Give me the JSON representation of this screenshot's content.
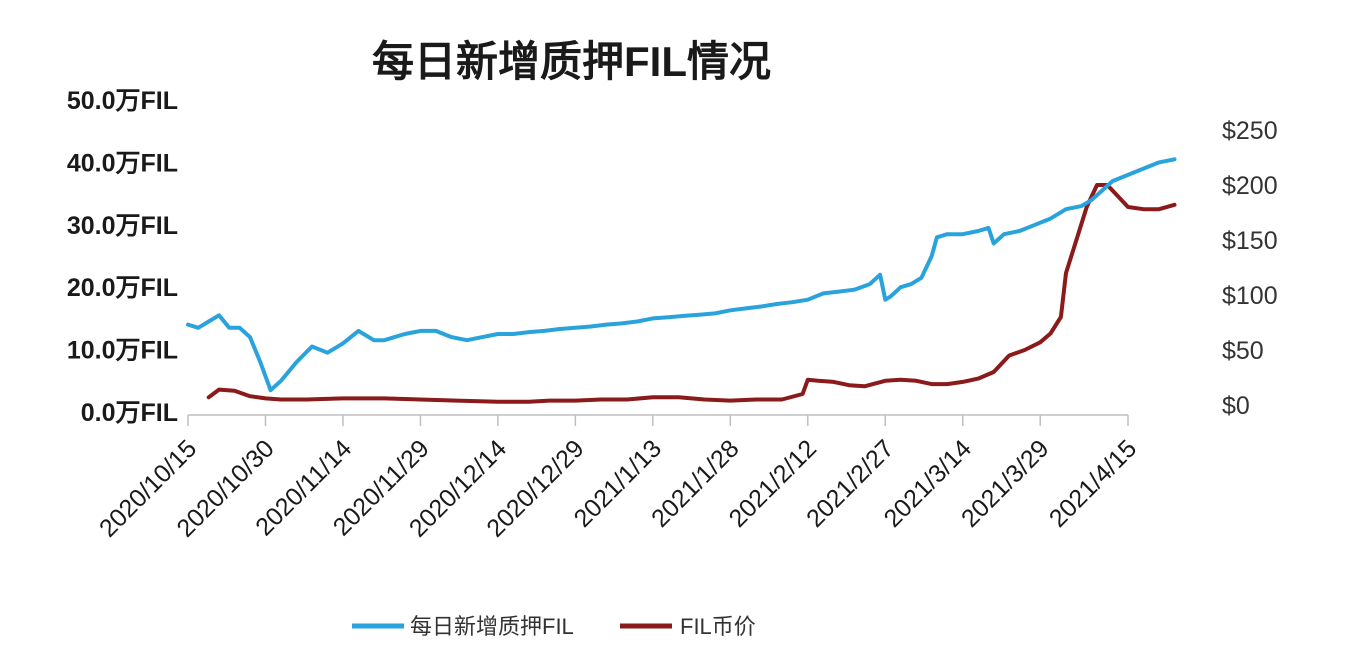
{
  "chart_data": {
    "type": "line",
    "title": "每日新增质押FIL情况",
    "x_ticks": [
      "2020/10/15",
      "2020/10/30",
      "2020/11/14",
      "2020/11/29",
      "2020/12/14",
      "2020/12/29",
      "2021/1/13",
      "2021/1/28",
      "2021/2/12",
      "2021/2/27",
      "2021/3/14",
      "2021/3/29",
      "2021/4/15"
    ],
    "y_left": {
      "ticks": [
        "0.0万FIL",
        "10.0万FIL",
        "20.0万FIL",
        "30.0万FIL",
        "40.0万FIL",
        "50.0万FIL"
      ],
      "ylim": [
        0,
        50
      ]
    },
    "y_right": {
      "ticks": [
        "$0",
        "$50",
        "$100",
        "$150",
        "$200",
        "$250"
      ],
      "ylim": [
        0,
        250
      ]
    },
    "legend": {
      "position": "bottom"
    },
    "colors": {
      "pledge": "#2aa3dc",
      "price": "#8b1a1a"
    },
    "series": [
      {
        "name": "每日新增质押FIL",
        "axis": "left",
        "x": [
          "2020-10-15",
          "2020-10-17",
          "2020-10-19",
          "2020-10-21",
          "2020-10-23",
          "2020-10-25",
          "2020-10-27",
          "2020-10-29",
          "2020-10-31",
          "2020-11-02",
          "2020-11-05",
          "2020-11-08",
          "2020-11-11",
          "2020-11-14",
          "2020-11-17",
          "2020-11-20",
          "2020-11-22",
          "2020-11-24",
          "2020-11-26",
          "2020-11-29",
          "2020-12-02",
          "2020-12-05",
          "2020-12-08",
          "2020-12-11",
          "2020-12-14",
          "2020-12-17",
          "2020-12-20",
          "2020-12-23",
          "2020-12-26",
          "2020-12-29",
          "2021-01-01",
          "2021-01-04",
          "2021-01-07",
          "2021-01-10",
          "2021-01-13",
          "2021-01-16",
          "2021-01-19",
          "2021-01-22",
          "2021-01-25",
          "2021-01-28",
          "2021-01-31",
          "2021-02-03",
          "2021-02-06",
          "2021-02-09",
          "2021-02-12",
          "2021-02-15",
          "2021-02-18",
          "2021-02-21",
          "2021-02-24",
          "2021-02-26",
          "2021-02-27",
          "2021-02-28",
          "2021-03-02",
          "2021-03-04",
          "2021-03-06",
          "2021-03-08",
          "2021-03-09",
          "2021-03-11",
          "2021-03-14",
          "2021-03-17",
          "2021-03-19",
          "2021-03-20",
          "2021-03-22",
          "2021-03-25",
          "2021-03-28",
          "2021-03-31",
          "2021-04-03",
          "2021-04-06",
          "2021-04-08",
          "2021-04-10",
          "2021-04-12",
          "2021-04-15",
          "2021-04-18",
          "2021-04-21",
          "2021-04-24"
        ],
        "values": [
          14.0,
          13.5,
          14.5,
          15.5,
          13.5,
          13.5,
          12.0,
          8.0,
          3.5,
          5.0,
          8.0,
          10.5,
          9.5,
          11.0,
          13.0,
          11.5,
          11.5,
          12.0,
          12.5,
          13.0,
          13.0,
          12.0,
          11.5,
          12.0,
          12.5,
          12.5,
          12.8,
          13.0,
          13.3,
          13.5,
          13.7,
          14.0,
          14.2,
          14.5,
          15.0,
          15.2,
          15.4,
          15.6,
          15.8,
          16.3,
          16.6,
          16.9,
          17.3,
          17.6,
          18.0,
          19.0,
          19.3,
          19.6,
          20.5,
          22.0,
          18.0,
          18.5,
          20.0,
          20.5,
          21.5,
          25.0,
          28.0,
          28.5,
          28.5,
          29.0,
          29.5,
          27.0,
          28.5,
          29.0,
          30.0,
          31.0,
          32.5,
          33.0,
          34.0,
          35.5,
          37.0,
          38.0,
          39.0,
          40.0,
          40.5
        ]
      },
      {
        "name": "FIL币价",
        "axis": "right",
        "x": [
          "2020-10-19",
          "2020-10-21",
          "2020-10-24",
          "2020-10-27",
          "2020-10-30",
          "2020-11-02",
          "2020-11-07",
          "2020-11-14",
          "2020-11-22",
          "2020-11-29",
          "2020-12-06",
          "2020-12-14",
          "2020-12-17",
          "2020-12-20",
          "2020-12-24",
          "2020-12-29",
          "2021-01-03",
          "2021-01-08",
          "2021-01-13",
          "2021-01-18",
          "2021-01-23",
          "2021-01-28",
          "2021-02-02",
          "2021-02-07",
          "2021-02-11",
          "2021-02-12",
          "2021-02-14",
          "2021-02-17",
          "2021-02-20",
          "2021-02-23",
          "2021-02-27",
          "2021-03-02",
          "2021-03-05",
          "2021-03-08",
          "2021-03-11",
          "2021-03-14",
          "2021-03-17",
          "2021-03-20",
          "2021-03-23",
          "2021-03-26",
          "2021-03-29",
          "2021-03-31",
          "2021-04-02",
          "2021-04-03",
          "2021-04-05",
          "2021-04-07",
          "2021-04-09",
          "2021-04-11",
          "2021-04-13",
          "2021-04-15",
          "2021-04-18",
          "2021-04-21",
          "2021-04-24"
        ],
        "values": [
          7,
          14,
          13,
          8,
          6,
          5,
          5,
          6,
          6,
          5,
          4,
          3,
          3,
          3,
          4,
          4,
          5,
          5,
          7,
          7,
          5,
          4,
          5,
          5,
          10,
          23,
          22,
          21,
          18,
          17,
          22,
          23,
          22,
          19,
          19,
          21,
          24,
          30,
          45,
          50,
          57,
          65,
          80,
          120,
          150,
          180,
          200,
          200,
          190,
          180,
          178,
          178,
          182
        ]
      }
    ]
  }
}
